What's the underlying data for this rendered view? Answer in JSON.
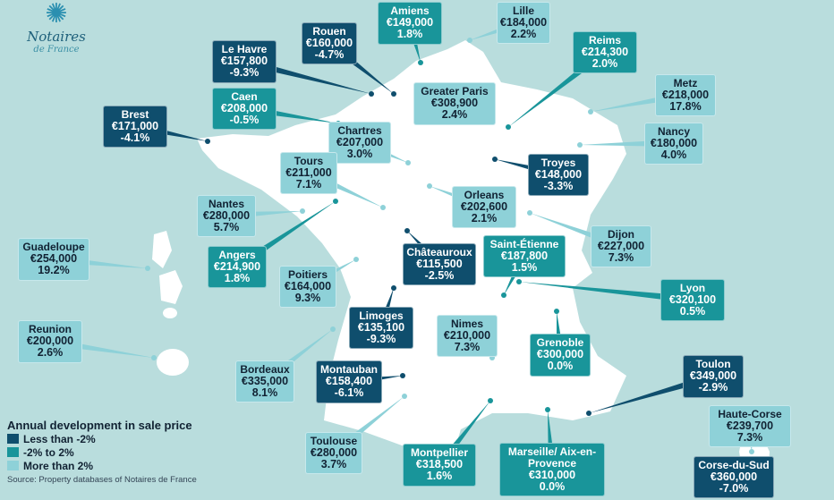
{
  "logo": {
    "name": "Notaires",
    "sub": "de France"
  },
  "colors": {
    "less_than_minus_2": "#0f4e6d",
    "minus_2_to_2": "#19959a",
    "more_than_2": "#8ed1d8",
    "map": "#ffffff",
    "background": "#b9dddd"
  },
  "legend": {
    "title": "Annual development in sale price",
    "items": [
      {
        "label": "Less than -2%",
        "category": "dark"
      },
      {
        "label": "-2% to 2%",
        "category": "mid"
      },
      {
        "label": "More than 2%",
        "category": "light"
      }
    ],
    "source": "Source: Property databases of Notaires de France"
  },
  "cities": [
    {
      "name": "Amiens",
      "price": "€149,000",
      "change": "1.8%",
      "category": "mid"
    },
    {
      "name": "Lille",
      "price": "€184,000",
      "change": "2.2%",
      "category": "light"
    },
    {
      "name": "Rouen",
      "price": "€160,000",
      "change": "-4.7%",
      "category": "dark"
    },
    {
      "name": "Le Havre",
      "price": "€157,800",
      "change": "-9.3%",
      "category": "dark"
    },
    {
      "name": "Reims",
      "price": "€214,300",
      "change": "2.0%",
      "category": "mid"
    },
    {
      "name": "Metz",
      "price": "€218,000",
      "change": "17.8%",
      "category": "light"
    },
    {
      "name": "Greater Paris",
      "price": "€308,900",
      "change": "2.4%",
      "category": "light"
    },
    {
      "name": "Caen",
      "price": "€208,000",
      "change": "-0.5%",
      "category": "mid"
    },
    {
      "name": "Brest",
      "price": "€171,000",
      "change": "-4.1%",
      "category": "dark"
    },
    {
      "name": "Chartres",
      "price": "€207,000",
      "change": "3.0%",
      "category": "light"
    },
    {
      "name": "Nancy",
      "price": "€180,000",
      "change": "4.0%",
      "category": "light"
    },
    {
      "name": "Tours",
      "price": "€211,000",
      "change": "7.1%",
      "category": "light"
    },
    {
      "name": "Troyes",
      "price": "€148,000",
      "change": "-3.3%",
      "category": "dark"
    },
    {
      "name": "Nantes",
      "price": "€280,000",
      "change": "5.7%",
      "category": "light"
    },
    {
      "name": "Orleans",
      "price": "€202,600",
      "change": "2.1%",
      "category": "light"
    },
    {
      "name": "Dijon",
      "price": "€227,000",
      "change": "7.3%",
      "category": "light"
    },
    {
      "name": "Guadeloupe",
      "price": "€254,000",
      "change": "19.2%",
      "category": "light"
    },
    {
      "name": "Angers",
      "price": "€214,900",
      "change": "1.8%",
      "category": "mid"
    },
    {
      "name": "Châteauroux",
      "price": "€115,500",
      "change": "-2.5%",
      "category": "dark"
    },
    {
      "name": "Saint-Étienne",
      "price": "€187,800",
      "change": "1.5%",
      "category": "mid"
    },
    {
      "name": "Poitiers",
      "price": "€164,000",
      "change": "9.3%",
      "category": "light"
    },
    {
      "name": "Lyon",
      "price": "€320,100",
      "change": "0.5%",
      "category": "mid"
    },
    {
      "name": "Reunion",
      "price": "€200,000",
      "change": "2.6%",
      "category": "light"
    },
    {
      "name": "Limoges",
      "price": "€135,100",
      "change": "-9.3%",
      "category": "dark"
    },
    {
      "name": "Nimes",
      "price": "€210,000",
      "change": "7.3%",
      "category": "light"
    },
    {
      "name": "Grenoble",
      "price": "€300,000",
      "change": "0.0%",
      "category": "mid"
    },
    {
      "name": "Bordeaux",
      "price": "€335,000",
      "change": "8.1%",
      "category": "light"
    },
    {
      "name": "Montauban",
      "price": "€158,400",
      "change": "-6.1%",
      "category": "dark"
    },
    {
      "name": "Toulon",
      "price": "€349,000",
      "change": "-2.9%",
      "category": "dark"
    },
    {
      "name": "Haute-Corse",
      "price": "€239,700",
      "change": "7.3%",
      "category": "light"
    },
    {
      "name": "Toulouse",
      "price": "€280,000",
      "change": "3.7%",
      "category": "light"
    },
    {
      "name": "Montpellier",
      "price": "€318,500",
      "change": "1.6%",
      "category": "mid"
    },
    {
      "name": "Marseille/ Aix-en-Provence",
      "price": "€310,000",
      "change": "0.0%",
      "category": "mid"
    },
    {
      "name": "Corse-du-Sud",
      "price": "€360,000",
      "change": "-7.0%",
      "category": "dark"
    }
  ]
}
